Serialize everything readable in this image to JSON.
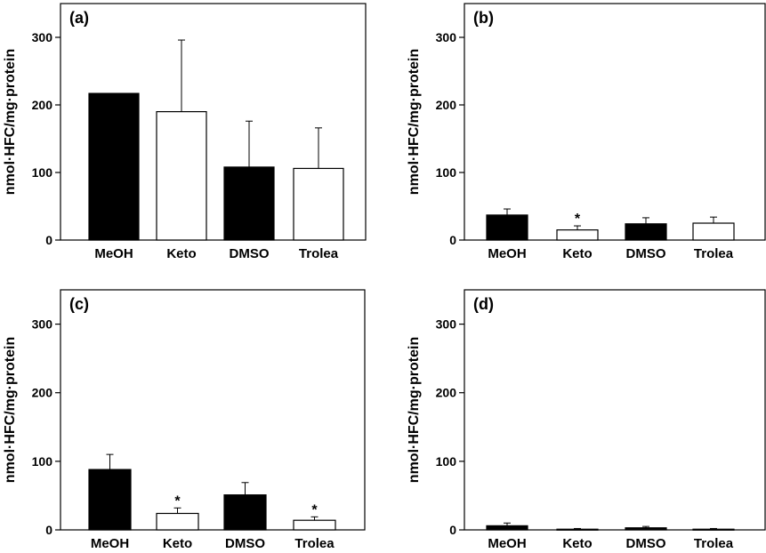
{
  "chart_data": [
    {
      "type": "bar",
      "panel_label": "(a)",
      "ylabel": "nmol·HFC/mg·protein",
      "ylim": [
        0,
        350
      ],
      "yticks": [
        0,
        100,
        200,
        300
      ],
      "categories": [
        "MeOH",
        "Keto",
        "DMSO",
        "Trolea"
      ],
      "values": [
        217,
        190,
        108,
        106
      ],
      "errors": [
        0,
        106,
        68,
        60
      ],
      "fills": [
        "#000000",
        "#ffffff",
        "#000000",
        "#ffffff"
      ],
      "significance": [
        "",
        "",
        "",
        ""
      ]
    },
    {
      "type": "bar",
      "panel_label": "(b)",
      "ylabel": "nmol·HFC/mg·protein",
      "ylim": [
        0,
        350
      ],
      "yticks": [
        0,
        100,
        200,
        300
      ],
      "categories": [
        "MeOH",
        "Keto",
        "DMSO",
        "Trolea"
      ],
      "values": [
        37,
        15,
        24,
        25
      ],
      "errors": [
        9,
        6,
        9,
        9
      ],
      "fills": [
        "#000000",
        "#ffffff",
        "#000000",
        "#ffffff"
      ],
      "significance": [
        "",
        "*",
        "",
        ""
      ]
    },
    {
      "type": "bar",
      "panel_label": "(c)",
      "ylabel": "nmol·HFC/mg·protein",
      "ylim": [
        0,
        350
      ],
      "yticks": [
        0,
        100,
        200,
        300
      ],
      "categories": [
        "MeOH",
        "Keto",
        "DMSO",
        "Trolea"
      ],
      "values": [
        88,
        24,
        51,
        14
      ],
      "errors": [
        22,
        8,
        18,
        5
      ],
      "fills": [
        "#000000",
        "#ffffff",
        "#000000",
        "#ffffff"
      ],
      "significance": [
        "",
        "*",
        "",
        "*"
      ]
    },
    {
      "type": "bar",
      "panel_label": "(d)",
      "ylabel": "nmol·HFC/mg·protein",
      "ylim": [
        0,
        350
      ],
      "yticks": [
        0,
        100,
        200,
        300
      ],
      "categories": [
        "MeOH",
        "Keto",
        "DMSO",
        "Trolea"
      ],
      "values": [
        6,
        1,
        3,
        1
      ],
      "errors": [
        4,
        1,
        2,
        1
      ],
      "fills": [
        "#000000",
        "#ffffff",
        "#000000",
        "#ffffff"
      ],
      "significance": [
        "",
        "",
        "",
        ""
      ]
    }
  ]
}
